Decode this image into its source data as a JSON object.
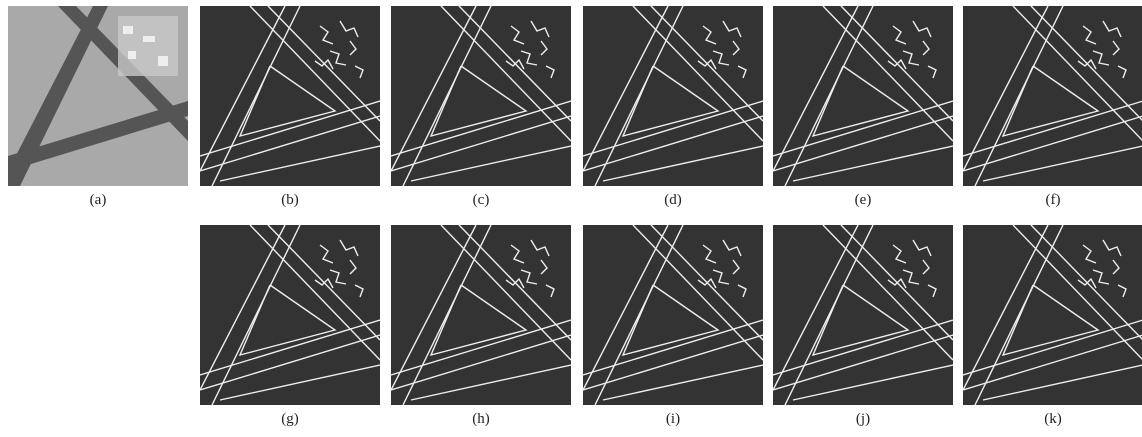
{
  "figure": {
    "panels": [
      {
        "caption": "(a)"
      },
      {
        "caption": "(b)"
      },
      {
        "caption": "(c)"
      },
      {
        "caption": "(d)"
      },
      {
        "caption": "(e)"
      },
      {
        "caption": "(f)"
      },
      {
        "caption": "(g)"
      },
      {
        "caption": "(h)"
      },
      {
        "caption": "(i)"
      },
      {
        "caption": "(j)"
      },
      {
        "caption": "(k)"
      }
    ]
  }
}
